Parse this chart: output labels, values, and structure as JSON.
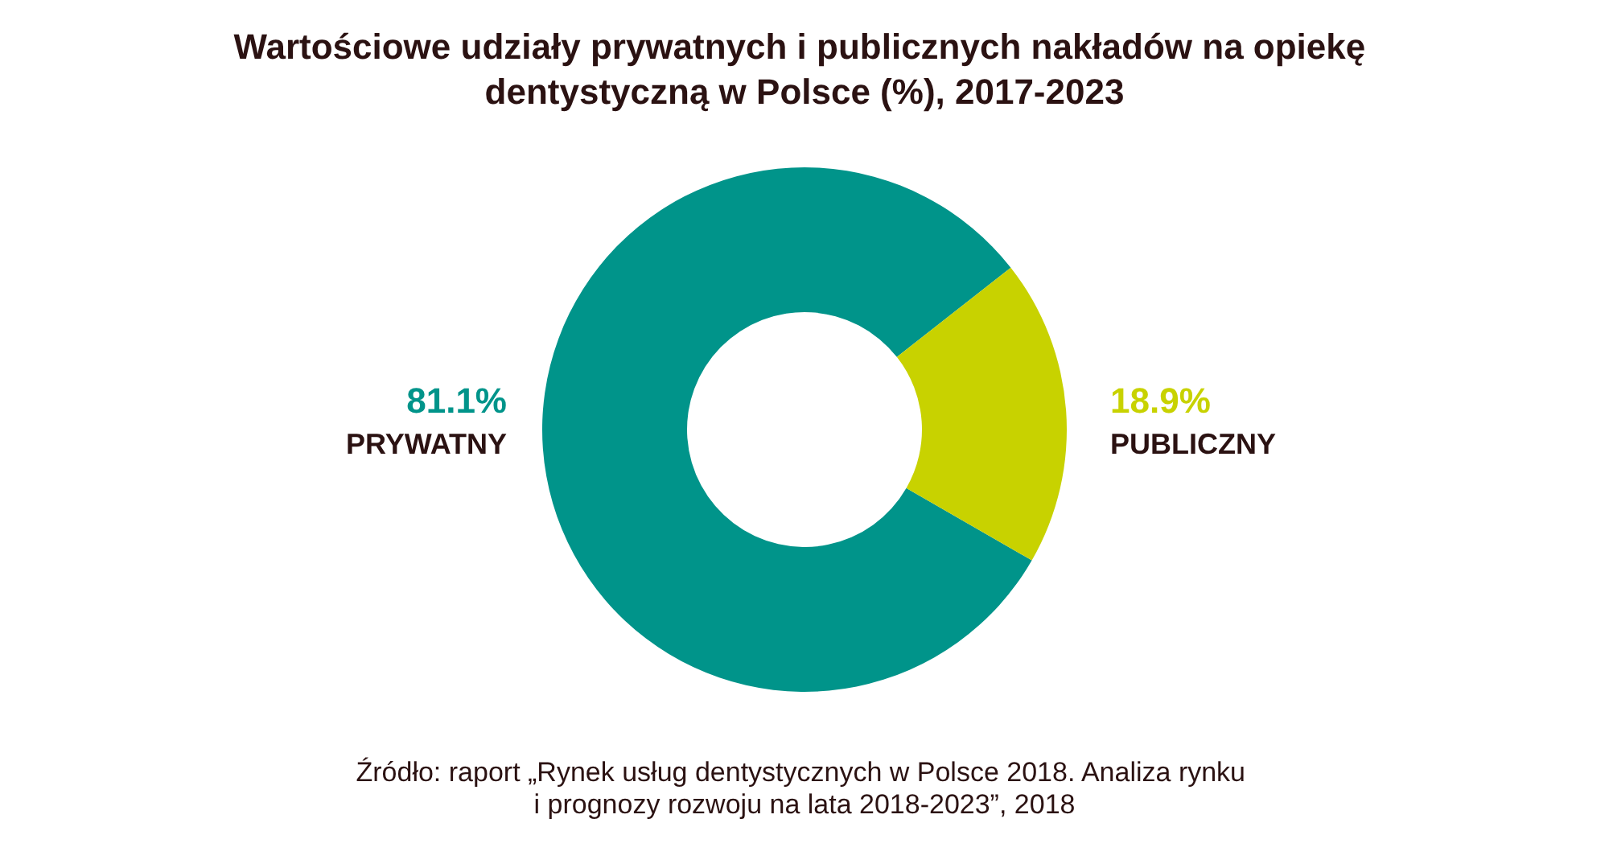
{
  "chart_data": {
    "type": "donut",
    "title": "Wartościowe udziały prywatnych i publicznych nakładów na opiekę dentystyczną w Polsce (%), 2017-2023",
    "categories": [
      "PRYWATNY",
      "PUBLICZNY"
    ],
    "values": [
      81.1,
      18.9
    ],
    "colors": [
      "#00948a",
      "#c8d200"
    ],
    "value_labels": [
      "81.1%",
      "18.9%"
    ],
    "annotations": [
      "Źródło: raport „Rynek usług dentystycznych w Polsce 2018. Analiza rynku i prognozy rozwoju na lata 2018-2023”, 2018"
    ]
  }
}
